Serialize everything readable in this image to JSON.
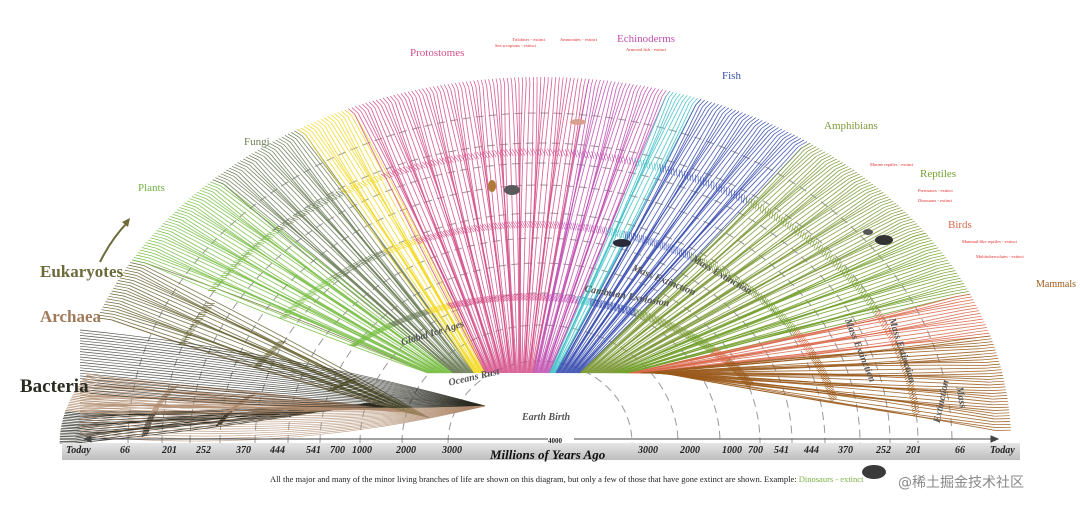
{
  "groups": {
    "bacteria": "Bacteria",
    "archaea": "Archaea",
    "eukaryotes": "Eukaryotes",
    "plants": "Plants",
    "fungi": "Fungi",
    "protostomes": "Protostomes",
    "echinoderms": "Echinoderms",
    "fish": "Fish",
    "amphibians": "Amphibians",
    "reptiles": "Reptiles",
    "birds": "Birds",
    "mammals": "Mammals"
  },
  "extinct_notes": {
    "trilobites": "Trilobites - extinct",
    "sea_scorpions": "Sea scorpions - extinct",
    "ammonites": "Ammonites - extinct",
    "armored_fish": "Armored fish - extinct",
    "marine_reptiles": "Marine reptiles - extinct",
    "pterosaurs": "Pterosaurs - extinct",
    "dinosaurs": "Dinosaurs - extinct",
    "mammal_like_reptiles": "Mammal-like reptiles - extinct",
    "multituberculates": "Multituberculates - extinct"
  },
  "events": {
    "global_ice_ages": "Global Ice Ages",
    "oceans_rust": "Oceans Rust",
    "earth_birth": "Earth Birth",
    "cambrian_explosion": "Cambrian Explosion",
    "mass_extinction": "Mass Extinction",
    "mass": "Mass",
    "extinction": "Extinction"
  },
  "axis": {
    "title": "Millions of Years Ago",
    "today": "Today",
    "center": "4000",
    "left_ticks": [
      "66",
      "201",
      "252",
      "370",
      "444",
      "541",
      "700",
      "1000",
      "2000",
      "3000"
    ],
    "right_ticks": [
      "3000",
      "2000",
      "1000",
      "700",
      "541",
      "444",
      "370",
      "252",
      "201",
      "66"
    ]
  },
  "caption": {
    "text": "All the major and many of the minor living branches of life are shown on this diagram, but only a few of those that have gone extinct are shown. Example: ",
    "example": "Dinosaurs - extinct"
  },
  "watermark": "@稀土掘金技术社区",
  "colors": {
    "bacteria": "#2b2b22",
    "archaea": "#b08c6e",
    "eukaryotes": "#6d6a3a",
    "plants": "#7cbf4a",
    "fungi": "#6f7f5a",
    "protostomes": "#d4508a",
    "echinoderms": "#c04fb0",
    "fish": "#3a4fb0",
    "amphibians": "#7e9a3a",
    "reptiles": "#74a02e",
    "birds": "#d9684b",
    "mammals": "#9a5a1c",
    "yellow_clade": "#f2d823",
    "cyan_clade": "#40c0c8",
    "extinct_red": "#e03030"
  }
}
